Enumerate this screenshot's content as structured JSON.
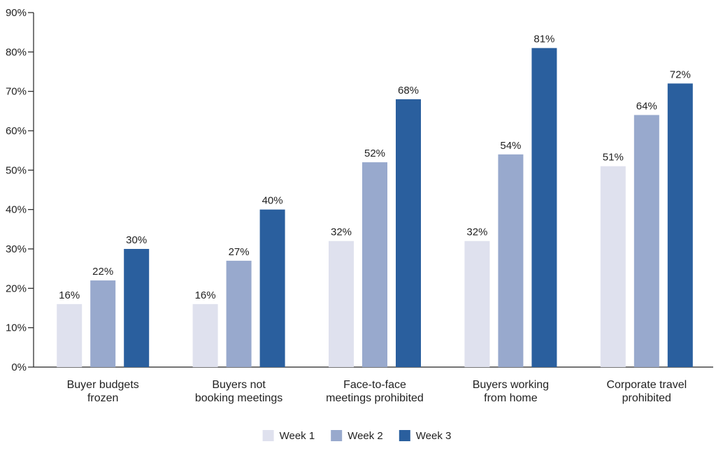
{
  "chart_data": {
    "type": "bar",
    "title": "",
    "xlabel": "",
    "ylabel": "",
    "categories": [
      [
        "Buyer budgets",
        "frozen"
      ],
      [
        "Buyers not",
        "booking meetings"
      ],
      [
        "Face-to-face",
        "meetings prohibited"
      ],
      [
        "Buyers working",
        "from home"
      ],
      [
        "Corporate travel",
        "prohibited"
      ]
    ],
    "series": [
      {
        "name": "Week 1",
        "color": "#dfe1ee",
        "values": [
          16,
          16,
          32,
          32,
          51
        ]
      },
      {
        "name": "Week 2",
        "color": "#98a9cd",
        "values": [
          22,
          27,
          52,
          54,
          64
        ]
      },
      {
        "name": "Week 3",
        "color": "#2a5f9e",
        "values": [
          30,
          40,
          68,
          81,
          72
        ]
      }
    ],
    "ylim": [
      0,
      90
    ],
    "yticks": [
      0,
      10,
      20,
      30,
      40,
      50,
      60,
      70,
      80,
      90
    ],
    "value_suffix": "%",
    "grid": false,
    "legend_position": "bottom-center"
  }
}
